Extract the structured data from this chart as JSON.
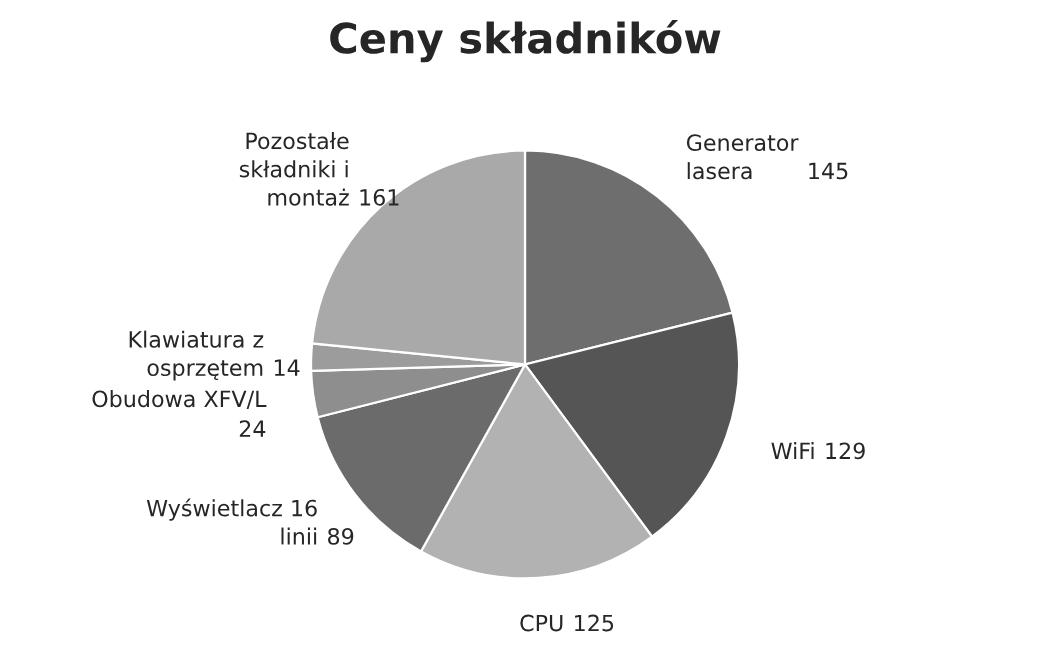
{
  "chart_data": {
    "type": "pie",
    "title": "Ceny składników",
    "categories": [
      "Generator lasera",
      "WiFi",
      "CPU",
      "Wyświetlacz 16 linii",
      "Obudowa XFV/L",
      "Klawiatura z osprzętem",
      "Pozostałe składniki i montaż"
    ],
    "values": [
      145,
      129,
      125,
      89,
      24,
      14,
      161
    ],
    "colors": [
      "#6e6e6e",
      "#555555",
      "#b2b2b2",
      "#6b6b6b",
      "#8e8e8e",
      "#9c9c9c",
      "#a9a9a9"
    ],
    "data_labels": true,
    "legend": false
  }
}
